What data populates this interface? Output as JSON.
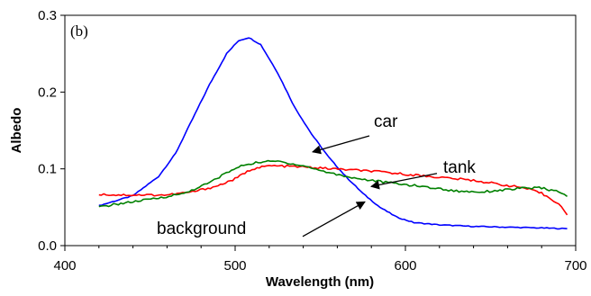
{
  "chart_data": {
    "type": "line",
    "panel_label": "(b)",
    "xlabel": "Wavelength (nm)",
    "ylabel": "Albedo",
    "xlim": [
      400,
      700
    ],
    "ylim": [
      0.0,
      0.3
    ],
    "x_ticks": [
      "400",
      "500",
      "600",
      "700"
    ],
    "y_ticks": [
      "0.0",
      "0.1",
      "0.2",
      "0.3"
    ],
    "grid": false,
    "series": [
      {
        "label": "car",
        "color": "#0000ff",
        "points": [
          [
            420,
            0.052
          ],
          [
            440,
            0.065
          ],
          [
            455,
            0.09
          ],
          [
            465,
            0.12
          ],
          [
            475,
            0.165
          ],
          [
            485,
            0.21
          ],
          [
            495,
            0.25
          ],
          [
            502,
            0.267
          ],
          [
            508,
            0.271
          ],
          [
            515,
            0.262
          ],
          [
            525,
            0.225
          ],
          [
            535,
            0.18
          ],
          [
            545,
            0.145
          ],
          [
            555,
            0.115
          ],
          [
            565,
            0.09
          ],
          [
            575,
            0.068
          ],
          [
            585,
            0.05
          ],
          [
            595,
            0.037
          ],
          [
            605,
            0.03
          ],
          [
            620,
            0.027
          ],
          [
            640,
            0.025
          ],
          [
            660,
            0.024
          ],
          [
            680,
            0.023
          ],
          [
            695,
            0.022
          ]
        ]
      },
      {
        "label": "tank",
        "color": "#ff0000",
        "points": [
          [
            420,
            0.067
          ],
          [
            430,
            0.066
          ],
          [
            445,
            0.066
          ],
          [
            460,
            0.066
          ],
          [
            475,
            0.07
          ],
          [
            490,
            0.078
          ],
          [
            500,
            0.087
          ],
          [
            510,
            0.1
          ],
          [
            520,
            0.104
          ],
          [
            535,
            0.103
          ],
          [
            550,
            0.101
          ],
          [
            565,
            0.099
          ],
          [
            580,
            0.097
          ],
          [
            600,
            0.093
          ],
          [
            620,
            0.089
          ],
          [
            640,
            0.085
          ],
          [
            655,
            0.08
          ],
          [
            670,
            0.075
          ],
          [
            680,
            0.068
          ],
          [
            690,
            0.055
          ],
          [
            695,
            0.04
          ]
        ]
      },
      {
        "label": "background",
        "color": "#008000",
        "points": [
          [
            420,
            0.05
          ],
          [
            430,
            0.054
          ],
          [
            440,
            0.057
          ],
          [
            455,
            0.062
          ],
          [
            470,
            0.068
          ],
          [
            485,
            0.082
          ],
          [
            495,
            0.095
          ],
          [
            505,
            0.105
          ],
          [
            515,
            0.109
          ],
          [
            525,
            0.11
          ],
          [
            540,
            0.104
          ],
          [
            555,
            0.095
          ],
          [
            570,
            0.088
          ],
          [
            590,
            0.082
          ],
          [
            610,
            0.077
          ],
          [
            630,
            0.071
          ],
          [
            645,
            0.07
          ],
          [
            660,
            0.073
          ],
          [
            670,
            0.075
          ],
          [
            680,
            0.075
          ],
          [
            690,
            0.07
          ],
          [
            695,
            0.064
          ]
        ]
      }
    ],
    "annotations": [
      {
        "text": "car",
        "text_xy": [
          415,
          0.162
        ],
        "arrow_from": [
          410,
          0.143
        ],
        "arrow_to": [
          347,
          0.122
        ]
      },
      {
        "text": "tank",
        "text_xy": [
          492,
          0.102
        ],
        "arrow_from": [
          485,
          0.094
        ],
        "arrow_to": [
          412,
          0.077
        ]
      },
      {
        "text": "background",
        "text_xy": [
          174,
          0.022
        ],
        "arrow_from": [
          336,
          0.012
        ],
        "arrow_to": [
          405,
          0.057
        ]
      }
    ]
  }
}
